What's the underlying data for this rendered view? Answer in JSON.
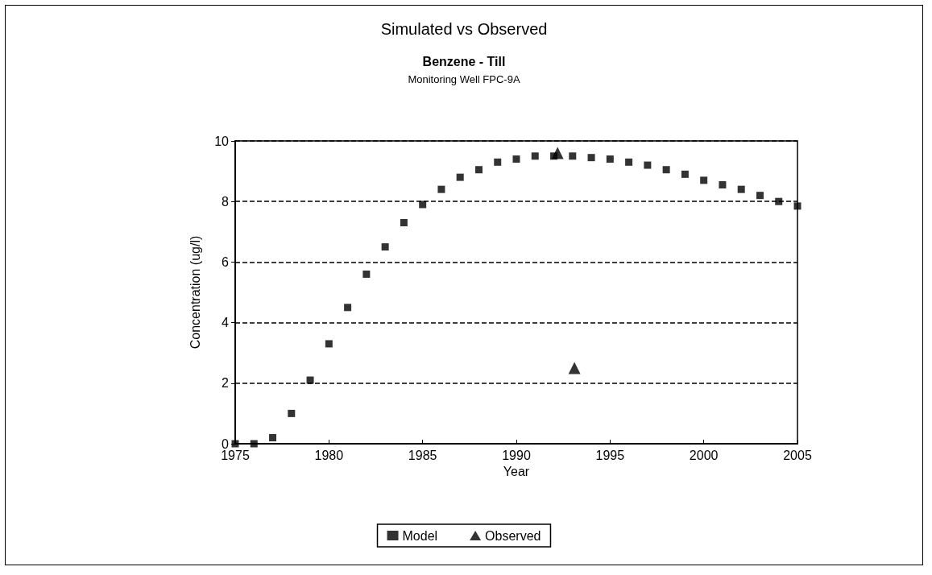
{
  "chart_data": {
    "type": "scatter",
    "title": "Simulated vs Observed",
    "subtitle": "Benzene - Till",
    "annotations": [
      "Monitoring Well FPC-9A"
    ],
    "xlabel": "Year",
    "ylabel": "Concentration (ug/l)",
    "xlim": [
      1975,
      2005
    ],
    "xticks": [
      1975,
      1980,
      1985,
      1990,
      1995,
      2000,
      2005
    ],
    "ylim": [
      0,
      10
    ],
    "yticks": [
      0,
      2,
      4,
      6,
      8,
      10
    ],
    "grid": "y",
    "line_style": "dashed",
    "legend": "bottom",
    "series": [
      {
        "name": "Model",
        "color": "#000000",
        "marker": "square",
        "x": [
          1975,
          1976,
          1977,
          1978,
          1979,
          1980,
          1981,
          1982,
          1983,
          1984,
          1985,
          1986,
          1987,
          1988,
          1989,
          1990,
          1991,
          1992,
          1993,
          1994,
          1995,
          1996,
          1997,
          1998,
          1999,
          2000,
          2001,
          2002,
          2003,
          2004,
          2005
        ],
        "values": [
          0,
          0,
          0.2,
          1.0,
          2.1,
          3.3,
          4.5,
          5.6,
          6.5,
          7.3,
          7.9,
          8.4,
          8.8,
          9.05,
          9.3,
          9.4,
          9.5,
          9.5,
          9.5,
          9.45,
          9.4,
          9.3,
          9.2,
          9.05,
          8.9,
          8.7,
          8.55,
          8.4,
          8.2,
          8.0,
          7.85
        ]
      },
      {
        "name": "Observed",
        "color": "#000000",
        "marker": "triangle",
        "x": [
          1992.2,
          1993.1
        ],
        "values": [
          9.6,
          2.5
        ]
      }
    ]
  }
}
